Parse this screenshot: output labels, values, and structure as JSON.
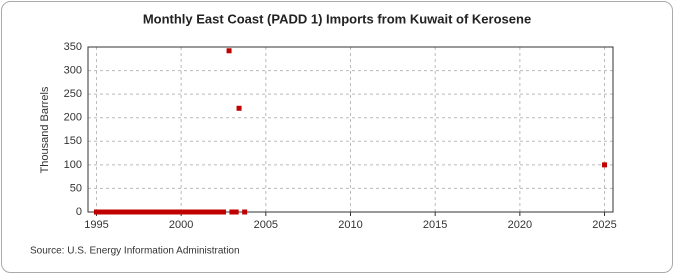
{
  "chart_data": {
    "type": "scatter",
    "title": "Monthly East Coast (PADD 1) Imports from Kuwait of Kerosene",
    "y_label": "Thousand Barrels",
    "source": "Source: U.S. Energy Information Administration",
    "x": [
      1995,
      1995.25,
      1995.5,
      1995.75,
      1996,
      1996.25,
      1996.5,
      1996.75,
      1997,
      1997.25,
      1997.5,
      1997.75,
      1998,
      1998.25,
      1998.5,
      1998.75,
      1999,
      1999.25,
      1999.5,
      1999.75,
      2000,
      2000.25,
      2000.5,
      2000.75,
      2001,
      2001.25,
      2001.5,
      2001.75,
      2002,
      2002.25,
      2002.5,
      2002.83,
      2003,
      2003.25,
      2003.42,
      2003.75,
      2025
    ],
    "values": [
      0,
      0,
      0,
      0,
      0,
      0,
      0,
      0,
      0,
      0,
      0,
      0,
      0,
      0,
      0,
      0,
      0,
      0,
      0,
      0,
      0,
      0,
      0,
      0,
      0,
      0,
      0,
      0,
      0,
      0,
      0,
      342,
      0,
      0,
      220,
      0,
      100
    ],
    "color": "#c00000",
    "xlim": [
      1994.5,
      2025.5
    ],
    "xticks": [
      1995,
      2000,
      2005,
      2010,
      2015,
      2020,
      2025
    ],
    "ylim": [
      0,
      350
    ],
    "yticks": [
      0,
      50,
      100,
      150,
      200,
      250,
      300,
      350
    ],
    "grid": true
  }
}
